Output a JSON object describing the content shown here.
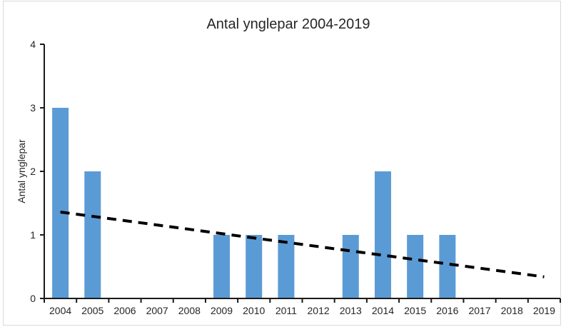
{
  "frame": {
    "background": "#ffffff",
    "border_color": "#d9d9d9"
  },
  "chart_data": {
    "type": "bar",
    "title": "Antal ynglepar 2004-2019",
    "xlabel": "",
    "ylabel": "Antal ynglepar",
    "categories": [
      "2004",
      "2005",
      "2006",
      "2007",
      "2008",
      "2009",
      "2010",
      "2011",
      "2012",
      "2013",
      "2014",
      "2015",
      "2016",
      "2017",
      "2018",
      "2019"
    ],
    "values": [
      3,
      2,
      0,
      0,
      0,
      1,
      1,
      1,
      0,
      1,
      2,
      1,
      1,
      0,
      0,
      0
    ],
    "ylim": [
      0,
      4
    ],
    "yticks": [
      0,
      1,
      2,
      3,
      4
    ],
    "grid": false,
    "legend": false,
    "bar_color": "#5B9BD5",
    "axis_color": "#1a1a1a",
    "text_color": "#262626",
    "trendline": {
      "style": "dashed",
      "color": "#000000",
      "start_category": "2004",
      "start_value": 1.36,
      "end_category": "2019",
      "end_value": 0.34
    }
  }
}
